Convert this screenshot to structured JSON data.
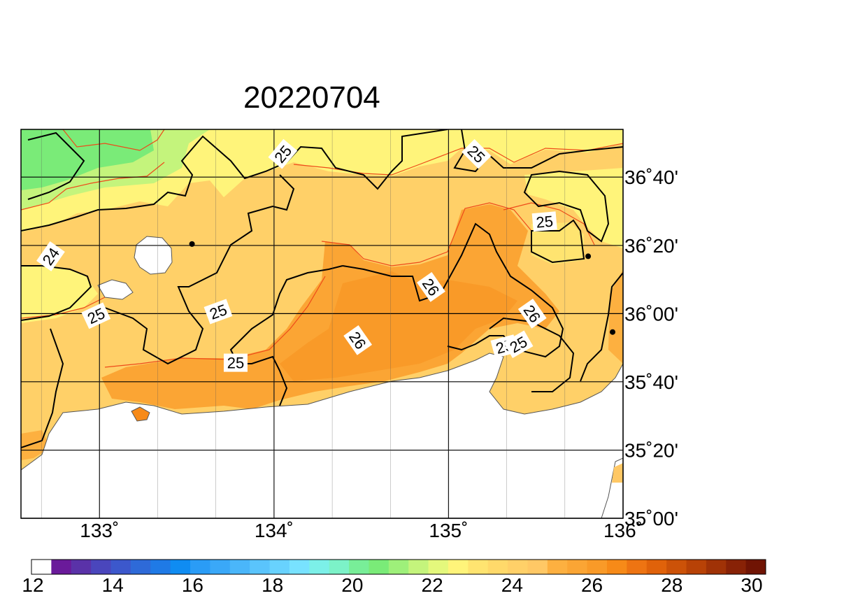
{
  "title": "20220704",
  "map": {
    "lon_range": [
      132.55,
      136.0
    ],
    "lat_range": [
      35.0,
      36.9
    ],
    "lon_ticks": [
      {
        "value": 133,
        "label": "133˚"
      },
      {
        "value": 134,
        "label": "134˚"
      },
      {
        "value": 135,
        "label": "135˚"
      },
      {
        "value": 136,
        "label": "136˚"
      }
    ],
    "lat_ticks": [
      {
        "value": 35.0,
        "label": "35˚00'"
      },
      {
        "value": 35.333,
        "label": "35˚20'"
      },
      {
        "value": 35.667,
        "label": "35˚40'"
      },
      {
        "value": 36.0,
        "label": "36˚00'"
      },
      {
        "value": 36.333,
        "label": "36˚20'"
      },
      {
        "value": 36.667,
        "label": "36˚40'"
      }
    ],
    "contour_labels": [
      {
        "text": "25",
        "lon": 134.05,
        "lat": 36.78,
        "angle": -50
      },
      {
        "text": "25",
        "lon": 135.16,
        "lat": 36.78,
        "angle": 45
      },
      {
        "text": "25",
        "lon": 135.55,
        "lat": 36.45,
        "angle": -5
      },
      {
        "text": "24",
        "lon": 132.72,
        "lat": 36.28,
        "angle": -55
      },
      {
        "text": "26",
        "lon": 134.9,
        "lat": 36.13,
        "angle": 55
      },
      {
        "text": "26",
        "lon": 135.48,
        "lat": 36.0,
        "angle": 55
      },
      {
        "text": "25",
        "lon": 132.98,
        "lat": 35.99,
        "angle": -25
      },
      {
        "text": "25",
        "lon": 133.68,
        "lat": 36.01,
        "angle": -20
      },
      {
        "text": "26",
        "lon": 134.48,
        "lat": 35.87,
        "angle": 55
      },
      {
        "text": "25",
        "lon": 135.32,
        "lat": 35.84,
        "angle": -15
      },
      {
        "text": "25",
        "lon": 135.4,
        "lat": 35.85,
        "angle": -30
      },
      {
        "text": "25",
        "lon": 133.78,
        "lat": 35.76,
        "angle": 0
      }
    ],
    "stations": [
      {
        "lon": 133.53,
        "lat": 36.34
      },
      {
        "lon": 135.8,
        "lat": 36.28
      },
      {
        "lon": 135.94,
        "lat": 35.91
      }
    ]
  },
  "colorbar": {
    "min": 12,
    "max": 30,
    "step": 0.5,
    "tick_labels": [
      "12",
      "14",
      "16",
      "18",
      "20",
      "22",
      "24",
      "26",
      "28",
      "30"
    ],
    "colors": [
      "#ffffff",
      "#6a1a9a",
      "#5a32a8",
      "#4a46bc",
      "#3c58cc",
      "#2e6ad8",
      "#1f7ae6",
      "#0f8cf2",
      "#2a9cf6",
      "#3aa8f8",
      "#4ab6fa",
      "#5ac4fc",
      "#68d2fe",
      "#78e2ff",
      "#7cf0e8",
      "#7cf2c8",
      "#78ee98",
      "#7aeb78",
      "#9ef07a",
      "#c4f47c",
      "#e4f87c",
      "#fff47a",
      "#ffe470",
      "#ffd96a",
      "#ffd068",
      "#ffc865",
      "#fdb040",
      "#fba534",
      "#f99a28",
      "#f78a18",
      "#ee7412",
      "#e0620a",
      "#cc5208",
      "#b84206",
      "#a03206",
      "#882206",
      "#701404"
    ]
  },
  "chart_data": {
    "type": "heatmap",
    "title": "20220704",
    "xlabel": "",
    "ylabel": "",
    "x_ticks": [
      "133˚",
      "134˚",
      "135˚",
      "136˚"
    ],
    "y_ticks": [
      "35˚00'",
      "35˚20'",
      "35˚40'",
      "36˚00'",
      "36˚20'",
      "36˚40'"
    ],
    "xlim": [
      132.55,
      136.0
    ],
    "ylim": [
      35.0,
      36.9
    ],
    "colorbar_range": [
      12,
      30
    ],
    "contour_levels": [
      24,
      25,
      26
    ],
    "grid": true
  }
}
